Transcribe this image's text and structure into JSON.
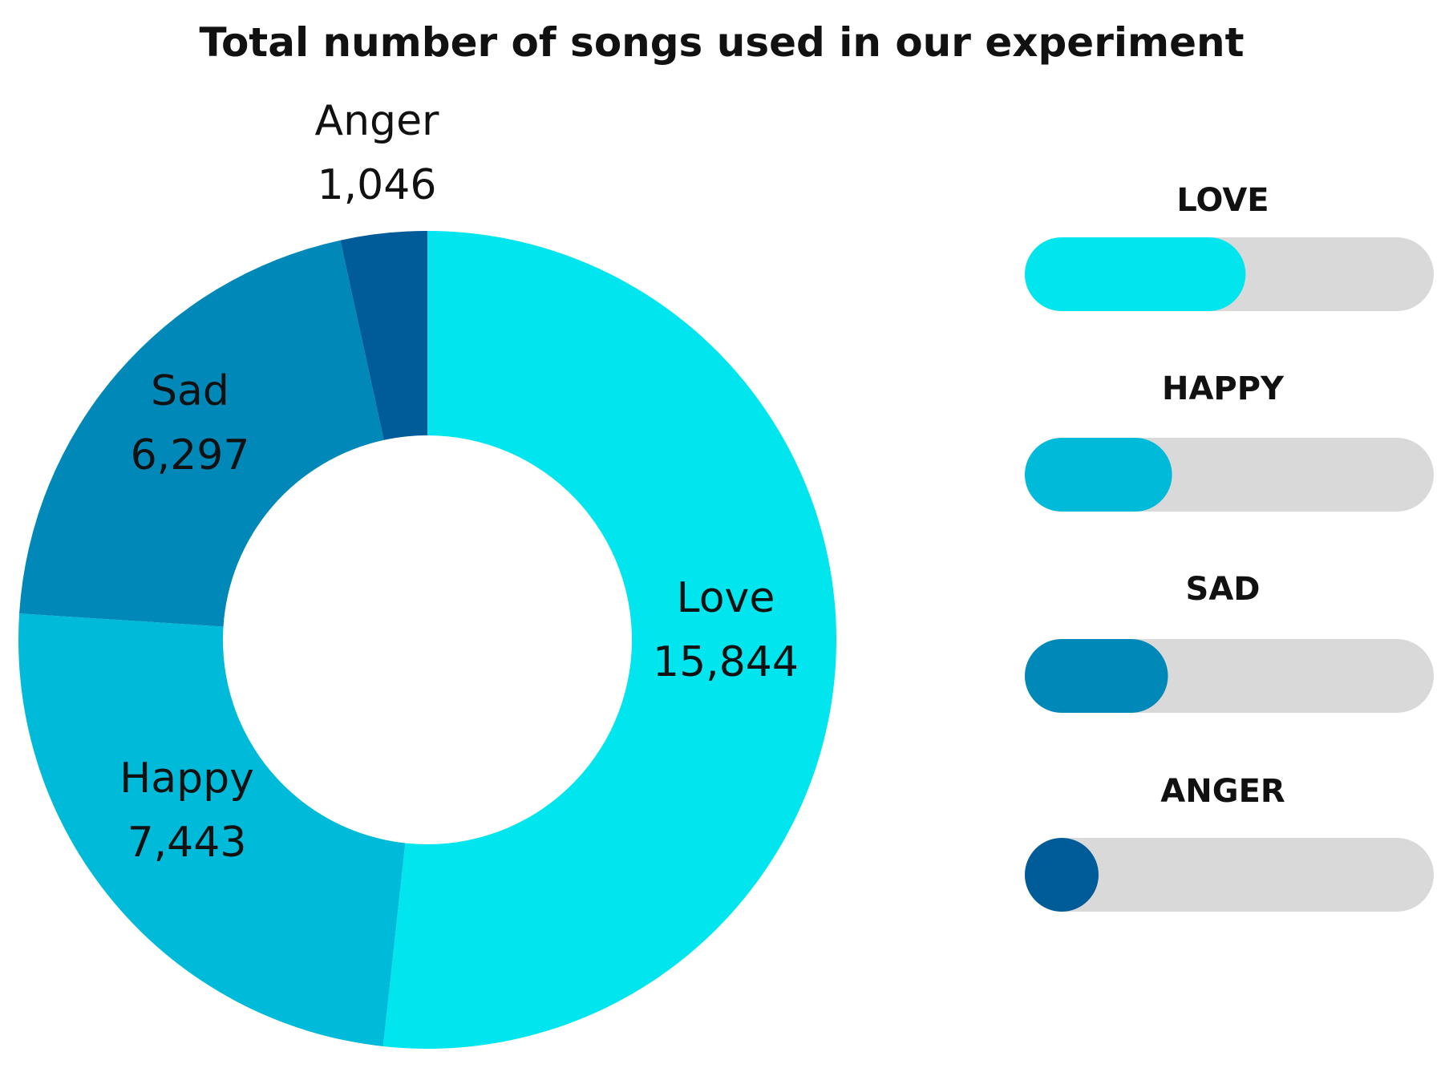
{
  "chart_data": {
    "type": "pie",
    "style": "donut",
    "title": "Total number of songs used in our experiment",
    "slices": [
      {
        "label": "Love",
        "value_text": "15,844",
        "value": 15844,
        "color": "#00E5EE"
      },
      {
        "label": "Happy",
        "value_text": "7,443",
        "value": 7443,
        "color": "#00BAD9"
      },
      {
        "label": "Sad",
        "value_text": "6,297",
        "value": 6297,
        "color": "#0088B8"
      },
      {
        "label": "Anger",
        "value_text": "1,046",
        "value": 1046,
        "color": "#005C99"
      }
    ],
    "progress_bars": [
      {
        "label": "LOVE",
        "fraction": 0.54,
        "color": "#00E5EE"
      },
      {
        "label": "HAPPY",
        "fraction": 0.36,
        "color": "#00BAD9"
      },
      {
        "label": "SAD",
        "fraction": 0.35,
        "color": "#0088B8"
      },
      {
        "label": "ANGER",
        "fraction": 0.18,
        "color": "#005C99"
      }
    ],
    "track_color": "#D9D9D9"
  }
}
